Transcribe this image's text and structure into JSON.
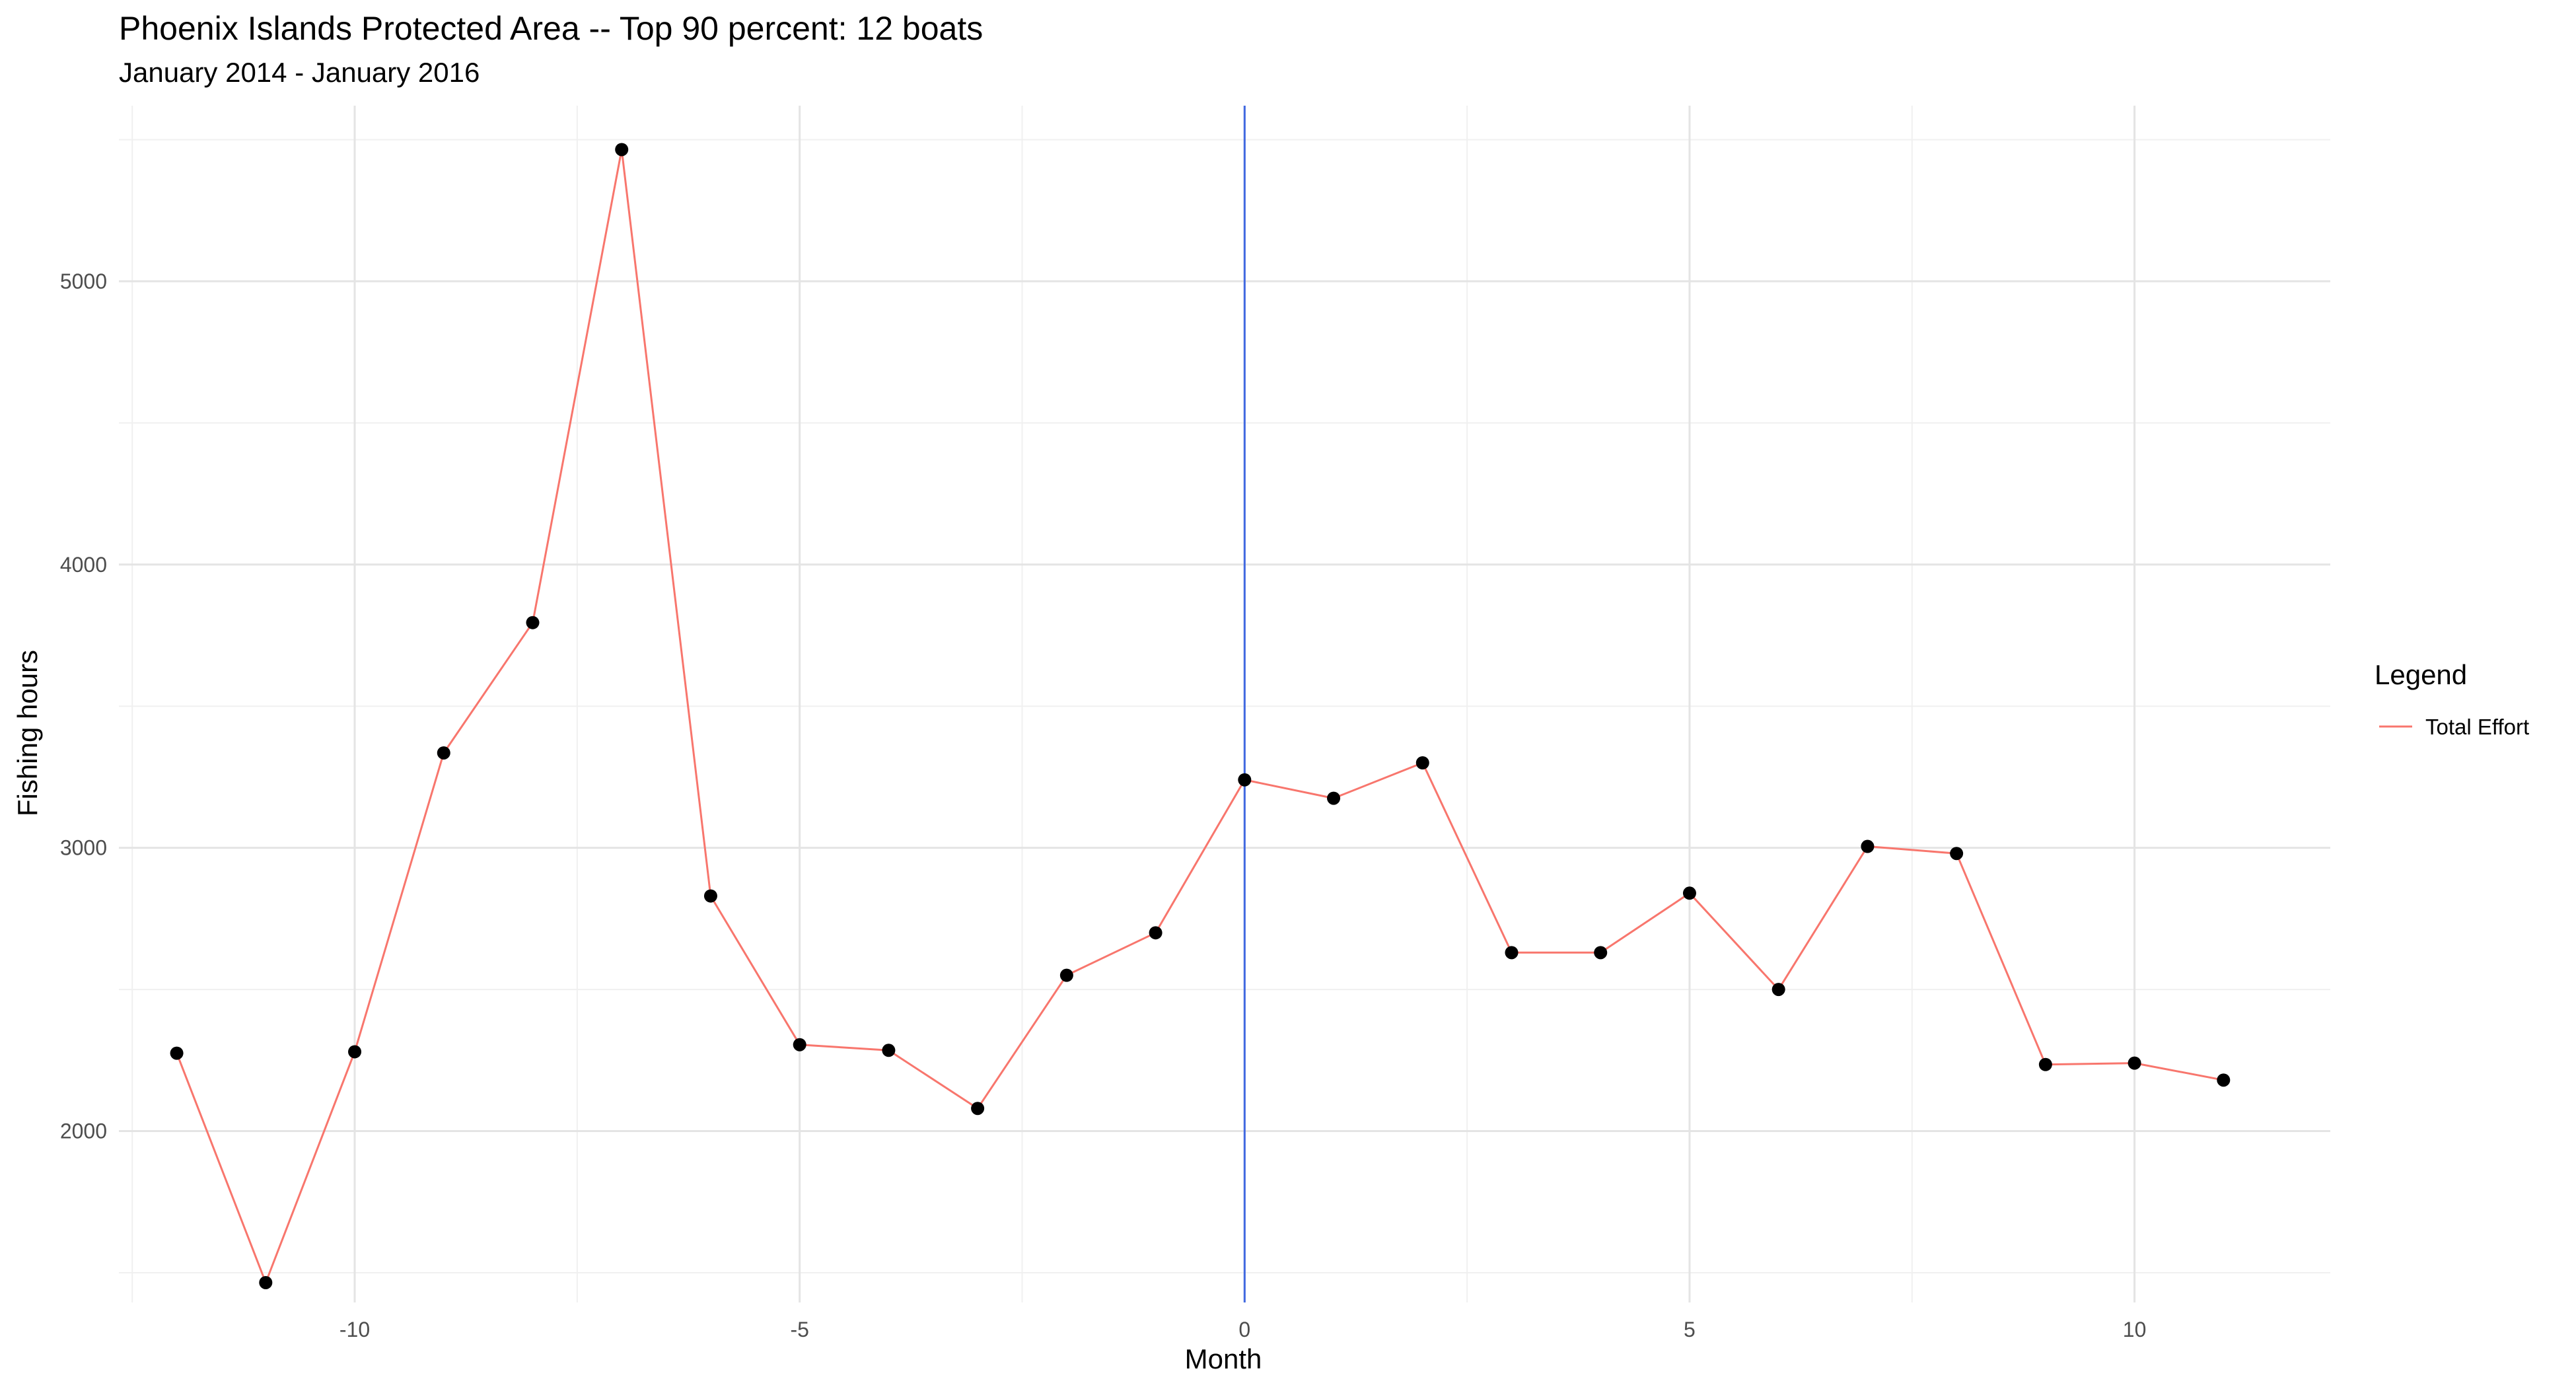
{
  "chart_data": {
    "type": "line",
    "title": "Phoenix Islands Protected Area -- Top 90 percent: 12 boats",
    "subtitle": "January 2014 - January 2016",
    "xlabel": "Month",
    "ylabel": "Fishing hours",
    "xlim": [
      -12.65,
      12.2
    ],
    "ylim": [
      1395,
      5620
    ],
    "x_ticks": [
      -10,
      -5,
      0,
      5,
      10
    ],
    "y_ticks": [
      2000,
      3000,
      4000,
      5000
    ],
    "grid": true,
    "legend": {
      "title": "Legend",
      "position": "right"
    },
    "reference_line": {
      "x": 0,
      "color": "#4169e1"
    },
    "series": [
      {
        "name": "Total Effort",
        "color": "#f8766d",
        "point_color": "#000000",
        "x": [
          -12,
          -11,
          -10,
          -9,
          -8,
          -7,
          -6,
          -5,
          -4,
          -3,
          -2,
          -1,
          0,
          1,
          2,
          3,
          4,
          5,
          6,
          7,
          8,
          9,
          10,
          11
        ],
        "values": [
          2275,
          1465,
          2280,
          3335,
          3795,
          5465,
          2830,
          2305,
          2285,
          2080,
          2550,
          2700,
          3240,
          3175,
          3300,
          2630,
          2630,
          2840,
          2500,
          3005,
          2980,
          2235,
          2240,
          2180
        ]
      }
    ]
  }
}
